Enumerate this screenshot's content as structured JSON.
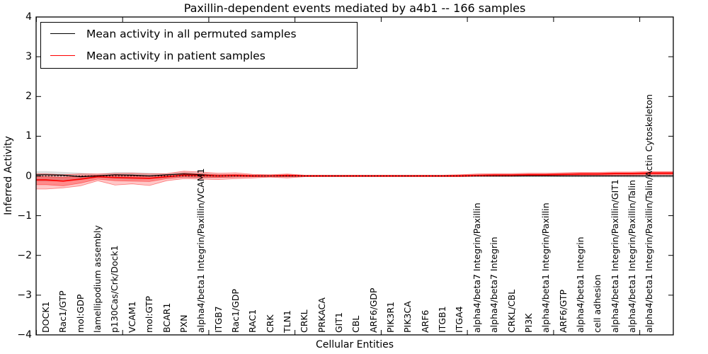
{
  "chart_data": {
    "type": "line",
    "title": "Paxillin-dependent events mediated by a4b1 -- 166 samples",
    "xlabel": "Cellular Entities",
    "ylabel": "Inferred Activity",
    "ylim": [
      -4,
      4
    ],
    "yticks": [
      4,
      3,
      2,
      1,
      0,
      -1,
      -2,
      -3,
      -4
    ],
    "x_major_tick_interval": 5,
    "grid": false,
    "zero_line": true,
    "legend_position": "upper left",
    "categories": [
      "DOCK1",
      "Rac1/GTP",
      "mol:GDP",
      "lamellipodium assembly",
      "p130Cas/Crk/Dock1",
      "VCAM1",
      "mol:GTP",
      "BCAR1",
      "PXN",
      "alpha4/beta1 Integrin/Paxillin/VCAM1",
      "ITGB7",
      "Rac1/GDP",
      "RAC1",
      "CRK",
      "TLN1",
      "CRKL",
      "PRKACA",
      "GIT1",
      "CBL",
      "ARF6/GDP",
      "PIK3R1",
      "PIK3CA",
      "ARF6",
      "ITGB1",
      "ITGA4",
      "alpha4/beta7 Integrin/Paxillin",
      "alpha4/beta7 Integrin",
      "CRKL/CBL",
      "PI3K",
      "alpha4/beta1 Integrin/Paxillin",
      "ARF6/GTP",
      "alpha4/beta1 Integrin",
      "cell adhesion",
      "alpha4/beta1 Integrin/Paxillin/GIT1",
      "alpha4/beta1 Integrin/Paxillin/Talin",
      "alpha4/beta1 Integrin/Paxillin/Talin/Actin Cytoskeleton"
    ],
    "series": [
      {
        "name": "Mean activity in all permuted samples",
        "color": "#000000",
        "values": [
          0.03,
          0.02,
          -0.02,
          0.0,
          0.03,
          0.02,
          0.0,
          0.03,
          0.05,
          0.03,
          0.0,
          0.01,
          0.0,
          0.0,
          0.0,
          0.0,
          0.0,
          0.0,
          0.0,
          0.0,
          0.0,
          0.0,
          0.0,
          0.0,
          0.0,
          0.0,
          0.0,
          0.0,
          0.0,
          0.0,
          0.0,
          0.0,
          0.0,
          0.0,
          0.0,
          0.0
        ],
        "bands": [
          {
            "color": "#999999",
            "opacity": 0.35,
            "upper": [
              0.12,
              0.1,
              0.08,
              0.05,
              0.1,
              0.09,
              0.08,
              0.06,
              0.1,
              0.08,
              0.05,
              0.04,
              0.03,
              0.03,
              0.03,
              0.02,
              0.02,
              0.02,
              0.02,
              0.02,
              0.02,
              0.02,
              0.02,
              0.02,
              0.02,
              0.02,
              0.02,
              0.02,
              0.02,
              0.02,
              0.03,
              0.03,
              0.03,
              0.03,
              0.04,
              0.04
            ],
            "lower": [
              -0.14,
              -0.12,
              -0.1,
              -0.05,
              -0.08,
              -0.09,
              -0.08,
              -0.06,
              -0.04,
              -0.06,
              -0.05,
              -0.04,
              -0.03,
              -0.03,
              -0.03,
              -0.02,
              -0.02,
              -0.02,
              -0.02,
              -0.02,
              -0.02,
              -0.02,
              -0.02,
              -0.02,
              -0.02,
              -0.02,
              -0.02,
              -0.02,
              -0.02,
              -0.02,
              -0.03,
              -0.03,
              -0.03,
              -0.03,
              -0.04,
              -0.04
            ]
          }
        ]
      },
      {
        "name": "Mean activity in patient samples",
        "color": "#ff0000",
        "values": [
          -0.1,
          -0.13,
          -0.08,
          -0.02,
          -0.04,
          -0.05,
          -0.06,
          -0.02,
          0.02,
          0.01,
          0.0,
          0.01,
          0.0,
          0.0,
          0.01,
          0.0,
          0.0,
          0.0,
          0.0,
          0.0,
          0.0,
          0.0,
          0.0,
          0.0,
          0.0,
          0.01,
          0.02,
          0.02,
          0.03,
          0.03,
          0.04,
          0.05,
          0.05,
          0.06,
          0.06,
          0.07
        ],
        "bands": [
          {
            "color": "#ff0000",
            "opacity": 0.22,
            "upper": [
              0.05,
              0.03,
              0.05,
              0.05,
              0.06,
              0.07,
              0.05,
              0.06,
              0.12,
              0.1,
              0.07,
              0.08,
              0.04,
              0.03,
              0.05,
              0.02,
              0.02,
              0.02,
              0.02,
              0.02,
              0.02,
              0.02,
              0.02,
              0.02,
              0.03,
              0.05,
              0.06,
              0.06,
              0.07,
              0.07,
              0.08,
              0.09,
              0.09,
              0.1,
              0.1,
              0.11
            ],
            "lower": [
              -0.33,
              -0.3,
              -0.25,
              -0.12,
              -0.23,
              -0.2,
              -0.24,
              -0.12,
              -0.07,
              -0.08,
              -0.09,
              -0.07,
              -0.05,
              -0.03,
              -0.05,
              -0.02,
              -0.02,
              -0.02,
              -0.02,
              -0.02,
              -0.02,
              -0.02,
              -0.02,
              -0.02,
              -0.02,
              -0.01,
              -0.01,
              -0.01,
              0.0,
              0.0,
              0.0,
              0.01,
              0.01,
              0.02,
              0.02,
              0.03
            ]
          },
          {
            "color": "#ff0000",
            "opacity": 0.3,
            "upper": [
              -0.02,
              -0.04,
              0.0,
              0.02,
              0.02,
              0.0,
              -0.01,
              0.02,
              0.07,
              0.05,
              0.03,
              0.04,
              0.02,
              0.01,
              0.03,
              0.01,
              0.01,
              0.01,
              0.01,
              0.01,
              0.01,
              0.01,
              0.01,
              0.01,
              0.02,
              0.03,
              0.04,
              0.04,
              0.05,
              0.05,
              0.06,
              0.07,
              0.07,
              0.08,
              0.08,
              0.09
            ],
            "lower": [
              -0.22,
              -0.25,
              -0.18,
              -0.08,
              -0.12,
              -0.13,
              -0.14,
              -0.07,
              -0.03,
              -0.04,
              -0.04,
              -0.03,
              -0.02,
              -0.01,
              -0.02,
              -0.01,
              -0.01,
              -0.01,
              -0.01,
              -0.01,
              -0.01,
              -0.01,
              -0.01,
              -0.01,
              -0.01,
              0.0,
              0.0,
              0.0,
              0.01,
              0.01,
              0.02,
              0.03,
              0.03,
              0.04,
              0.04,
              0.05
            ]
          }
        ]
      }
    ]
  }
}
